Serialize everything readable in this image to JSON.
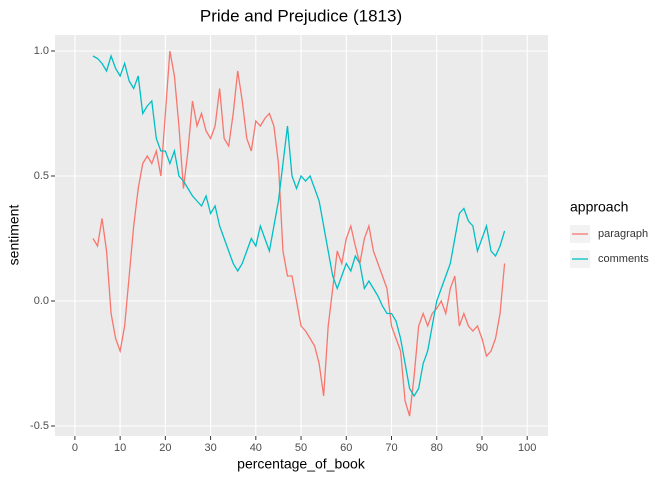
{
  "chart_data": {
    "type": "line",
    "title": "Pride and Prejudice (1813)",
    "x_label": "percentage_of_book",
    "y_label": "sentiment",
    "legend_title": "approach",
    "x": [
      4,
      5,
      6,
      7,
      8,
      9,
      10,
      11,
      12,
      13,
      14,
      15,
      16,
      17,
      18,
      19,
      20,
      21,
      22,
      23,
      24,
      25,
      26,
      27,
      28,
      29,
      30,
      31,
      32,
      33,
      34,
      35,
      36,
      37,
      38,
      39,
      40,
      41,
      42,
      43,
      44,
      45,
      46,
      47,
      48,
      49,
      50,
      51,
      52,
      53,
      54,
      55,
      56,
      57,
      58,
      59,
      60,
      61,
      62,
      63,
      64,
      65,
      66,
      67,
      68,
      69,
      70,
      71,
      72,
      73,
      74,
      75,
      76,
      77,
      78,
      79,
      80,
      81,
      82,
      83,
      84,
      85,
      86,
      87,
      88,
      89,
      90,
      91,
      92,
      93,
      94,
      95
    ],
    "series": [
      {
        "name": "paragraph",
        "color": "#F8766D",
        "values": [
          0.25,
          0.22,
          0.33,
          0.2,
          -0.05,
          -0.15,
          -0.2,
          -0.1,
          0.1,
          0.3,
          0.45,
          0.55,
          0.58,
          0.55,
          0.6,
          0.5,
          0.75,
          1.0,
          0.9,
          0.7,
          0.45,
          0.6,
          0.8,
          0.7,
          0.75,
          0.68,
          0.65,
          0.7,
          0.85,
          0.65,
          0.62,
          0.75,
          0.92,
          0.8,
          0.65,
          0.6,
          0.72,
          0.7,
          0.73,
          0.75,
          0.7,
          0.55,
          0.2,
          0.1,
          0.1,
          0.0,
          -0.1,
          -0.12,
          -0.15,
          -0.18,
          -0.25,
          -0.38,
          -0.1,
          0.05,
          0.2,
          0.15,
          0.25,
          0.3,
          0.22,
          0.15,
          0.25,
          0.3,
          0.2,
          0.15,
          0.1,
          0.05,
          -0.1,
          -0.15,
          -0.2,
          -0.4,
          -0.46,
          -0.3,
          -0.1,
          -0.05,
          -0.1,
          -0.05,
          -0.03,
          0.0,
          -0.05,
          0.05,
          0.1,
          -0.1,
          -0.05,
          -0.1,
          -0.12,
          -0.1,
          -0.15,
          -0.22,
          -0.2,
          -0.15,
          -0.05,
          0.15
        ]
      },
      {
        "name": "comments",
        "color": "#00BFC4",
        "values": [
          0.98,
          0.97,
          0.95,
          0.92,
          0.98,
          0.93,
          0.9,
          0.95,
          0.88,
          0.85,
          0.9,
          0.75,
          0.78,
          0.8,
          0.65,
          0.6,
          0.6,
          0.55,
          0.6,
          0.5,
          0.48,
          0.45,
          0.42,
          0.4,
          0.38,
          0.42,
          0.35,
          0.38,
          0.3,
          0.25,
          0.2,
          0.15,
          0.12,
          0.15,
          0.2,
          0.25,
          0.22,
          0.3,
          0.25,
          0.2,
          0.3,
          0.4,
          0.55,
          0.7,
          0.5,
          0.45,
          0.5,
          0.48,
          0.5,
          0.45,
          0.4,
          0.3,
          0.2,
          0.1,
          0.05,
          0.1,
          0.15,
          0.12,
          0.18,
          0.15,
          0.05,
          0.08,
          0.05,
          0.02,
          -0.02,
          -0.05,
          -0.05,
          -0.08,
          -0.15,
          -0.25,
          -0.35,
          -0.38,
          -0.35,
          -0.25,
          -0.2,
          -0.1,
          0.0,
          0.05,
          0.1,
          0.15,
          0.25,
          0.35,
          0.37,
          0.32,
          0.3,
          0.2,
          0.25,
          0.3,
          0.2,
          0.18,
          0.22,
          0.28
        ]
      }
    ],
    "xlim": [
      -4.4,
      104.6
    ],
    "xticks": [
      0,
      10,
      20,
      30,
      40,
      50,
      60,
      70,
      80,
      90,
      100
    ],
    "ylim": [
      -0.54,
      1.064
    ],
    "yticks": [
      {
        "value": -0.5,
        "label": "-0.5"
      },
      {
        "value": 0,
        "label": "0.0"
      },
      {
        "value": 0.5,
        "label": "0.5"
      },
      {
        "value": 1,
        "label": "1.0"
      }
    ],
    "grid": true
  }
}
